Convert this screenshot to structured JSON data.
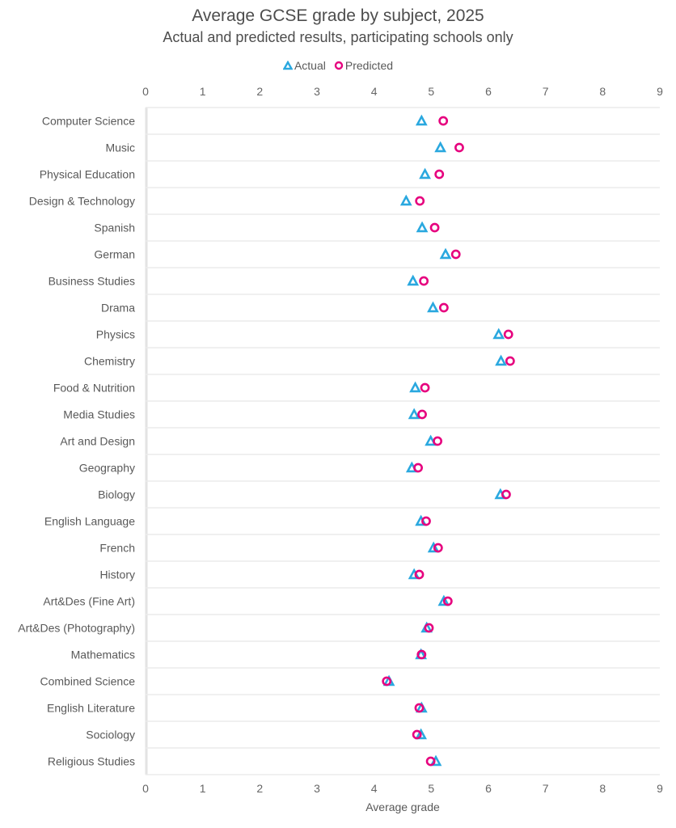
{
  "chart_data": {
    "type": "scatter",
    "title": "Average GCSE grade by subject, 2025",
    "subtitle": "Actual and predicted results, participating schools only",
    "xlabel": "Average grade",
    "ylabel": "",
    "xlim": [
      0,
      9
    ],
    "xticks": [
      "0",
      "1",
      "2",
      "3",
      "4",
      "5",
      "6",
      "7",
      "8",
      "9"
    ],
    "xticks_top_and_bottom": true,
    "legend_position": "top-center",
    "grid": "horizontal row separators",
    "categories": [
      "Computer Science",
      "Music",
      "Physical Education",
      "Design & Technology",
      "Spanish",
      "German",
      "Business Studies",
      "Drama",
      "Physics",
      "Chemistry",
      "Food & Nutrition",
      "Media Studies",
      "Art and Design",
      "Geography",
      "Biology",
      "English Language",
      "French",
      "History",
      "Art&Des (Fine Art)",
      "Art&Des (Photography)",
      "Mathematics",
      "Combined Science",
      "English Literature",
      "Sociology",
      "Religious Studies"
    ],
    "series": [
      {
        "name": "Actual",
        "marker": "triangle",
        "color": "#2AA8DF",
        "values": [
          4.83,
          5.16,
          4.89,
          4.56,
          4.84,
          5.25,
          4.68,
          5.03,
          6.18,
          6.22,
          4.72,
          4.7,
          4.99,
          4.66,
          6.21,
          4.82,
          5.04,
          4.7,
          5.22,
          4.92,
          4.82,
          4.26,
          4.83,
          4.82,
          5.08
        ]
      },
      {
        "name": "Predicted",
        "marker": "circle",
        "color": "#E6007E",
        "values": [
          5.21,
          5.49,
          5.14,
          4.8,
          5.06,
          5.43,
          4.87,
          5.22,
          6.35,
          6.38,
          4.89,
          4.84,
          5.11,
          4.77,
          6.31,
          4.91,
          5.12,
          4.79,
          5.29,
          4.96,
          4.83,
          4.22,
          4.79,
          4.75,
          4.99
        ]
      }
    ]
  }
}
